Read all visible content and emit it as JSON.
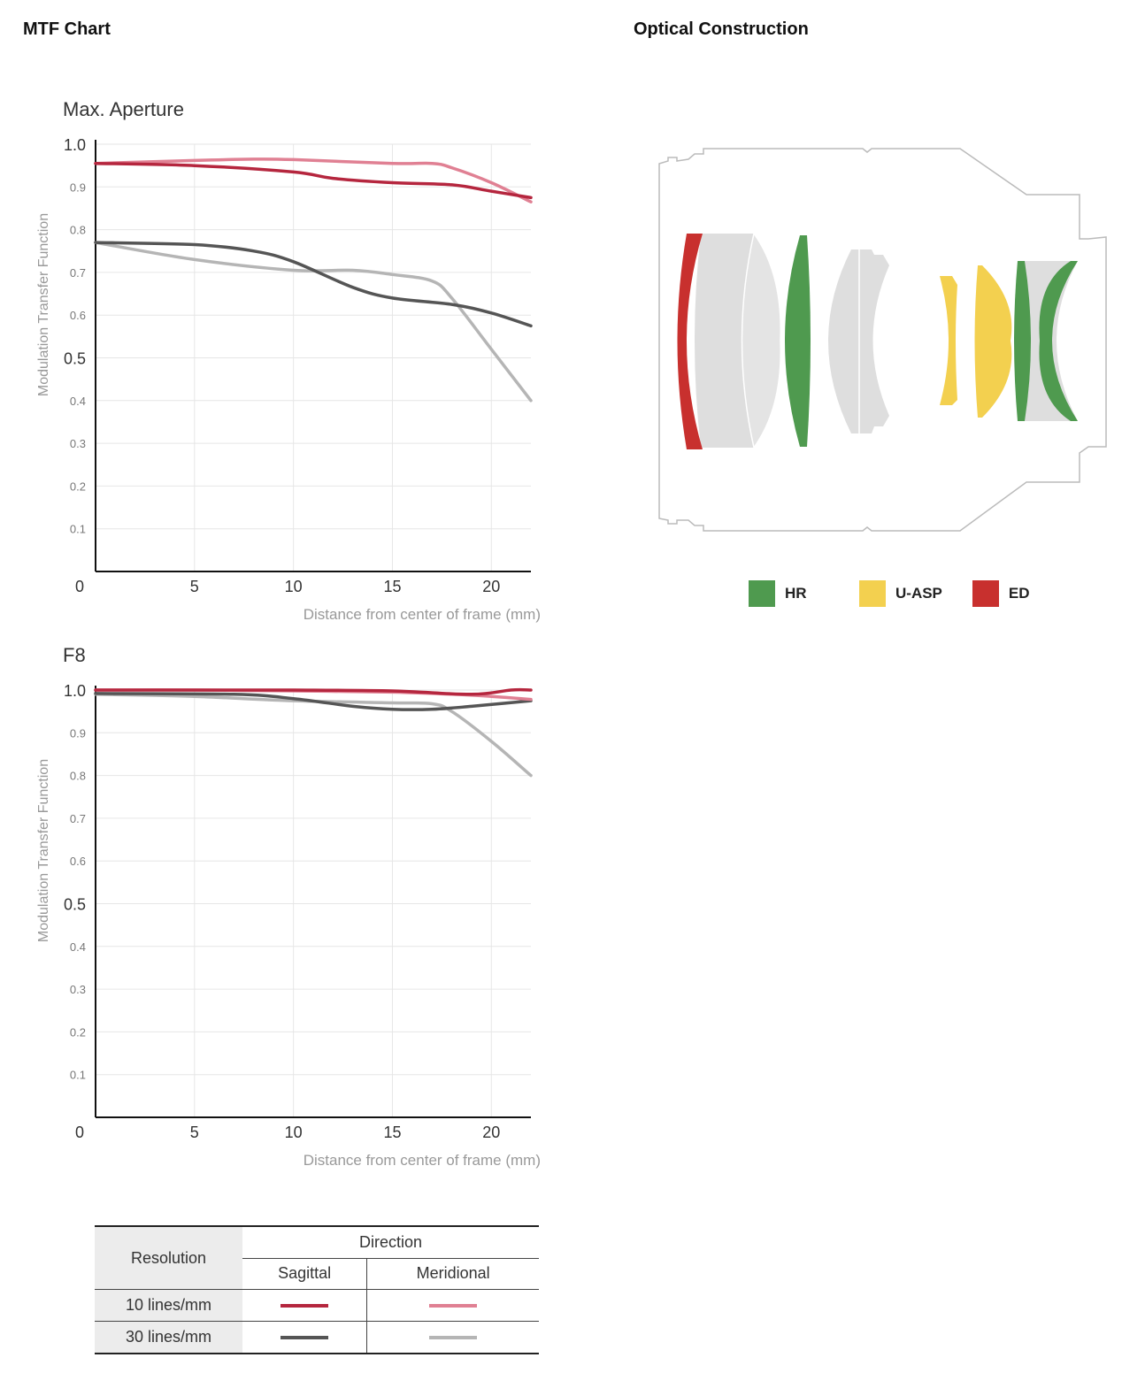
{
  "sections": {
    "mtf_title": "MTF Chart",
    "optical_title": "Optical Construction"
  },
  "colors": {
    "sagittal_10": "#b5263e",
    "meridional_10": "#e08093",
    "sagittal_30": "#555555",
    "meridional_30": "#b5b5b5",
    "hr": "#4f9a4f",
    "u_asp": "#f3d04f",
    "ed": "#c8302e",
    "lens_grey": "#dedede"
  },
  "chart_data": [
    {
      "type": "line",
      "title": "Max. Aperture",
      "xlabel": "Distance from center of frame (mm)",
      "ylabel": "Modulation Transfer Function",
      "xlim": [
        0,
        22
      ],
      "ylim": [
        0,
        1.0
      ],
      "x_ticks": [
        "0",
        "5",
        "10",
        "15",
        "20"
      ],
      "y_ticks": [
        "1.0",
        "0.9",
        "0.8",
        "0.7",
        "0.6",
        "0.5",
        "0.4",
        "0.3",
        "0.2",
        "0.1"
      ],
      "grid": true,
      "series": [
        {
          "key": "sagittal_10",
          "x": [
            0,
            5,
            10,
            12,
            15,
            18,
            20,
            22
          ],
          "y": [
            0.955,
            0.95,
            0.935,
            0.92,
            0.91,
            0.905,
            0.89,
            0.875
          ]
        },
        {
          "key": "meridional_10",
          "x": [
            0,
            5,
            8,
            10,
            15,
            17,
            18,
            20,
            22
          ],
          "y": [
            0.955,
            0.962,
            0.965,
            0.964,
            0.955,
            0.955,
            0.945,
            0.91,
            0.865
          ]
        },
        {
          "key": "sagittal_30",
          "x": [
            0,
            5,
            8,
            10,
            13,
            15,
            18,
            20,
            22
          ],
          "y": [
            0.77,
            0.765,
            0.75,
            0.725,
            0.665,
            0.64,
            0.625,
            0.605,
            0.575
          ]
        },
        {
          "key": "meridional_30",
          "x": [
            0,
            5,
            10,
            13,
            15,
            17,
            18,
            20,
            22
          ],
          "y": [
            0.77,
            0.73,
            0.705,
            0.705,
            0.695,
            0.68,
            0.64,
            0.52,
            0.4
          ]
        }
      ]
    },
    {
      "type": "line",
      "title": "F8",
      "xlabel": "Distance from center of frame (mm)",
      "ylabel": "Modulation Transfer Function",
      "xlim": [
        0,
        22
      ],
      "ylim": [
        0,
        1.0
      ],
      "x_ticks": [
        "0",
        "5",
        "10",
        "15",
        "20"
      ],
      "y_ticks": [
        "1.0",
        "0.9",
        "0.8",
        "0.7",
        "0.6",
        "0.5",
        "0.4",
        "0.3",
        "0.2",
        "0.1"
      ],
      "grid": true,
      "series": [
        {
          "key": "sagittal_10",
          "x": [
            0,
            5,
            10,
            15,
            19,
            21,
            22
          ],
          "y": [
            1.0,
            1.0,
            1.0,
            0.998,
            0.99,
            1.0,
            1.0
          ]
        },
        {
          "key": "meridional_10",
          "x": [
            0,
            5,
            10,
            15,
            18,
            20,
            22
          ],
          "y": [
            1.0,
            1.0,
            0.998,
            0.995,
            0.99,
            0.985,
            0.978
          ]
        },
        {
          "key": "sagittal_30",
          "x": [
            0,
            7,
            10,
            13,
            15,
            17,
            19,
            22
          ],
          "y": [
            0.992,
            0.99,
            0.98,
            0.962,
            0.955,
            0.955,
            0.962,
            0.975
          ]
        },
        {
          "key": "meridional_30",
          "x": [
            0,
            5,
            10,
            15,
            17,
            18,
            20,
            22
          ],
          "y": [
            0.99,
            0.985,
            0.975,
            0.97,
            0.968,
            0.95,
            0.88,
            0.8
          ]
        }
      ]
    }
  ],
  "element_legend": [
    {
      "label": "HR",
      "color": "#4f9a4f"
    },
    {
      "label": "U-ASP",
      "color": "#f3d04f"
    },
    {
      "label": "ED",
      "color": "#c8302e"
    }
  ],
  "line_legend": {
    "resolution_header": "Resolution",
    "direction_header": "Direction",
    "sagittal": "Sagittal",
    "meridional": "Meridional",
    "row1": "10 lines/mm",
    "row2": "30 lines/mm"
  }
}
